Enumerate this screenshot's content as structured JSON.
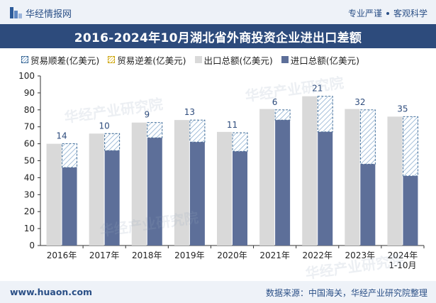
{
  "header": {
    "brand": "华经情报网",
    "tags": [
      "专业严谨",
      "客观科学"
    ]
  },
  "title": "2016-2024年10月湖北省外商投资企业进出口差额",
  "legend": [
    {
      "key": "surplus",
      "label": "贸易顺差(亿美元)"
    },
    {
      "key": "deficit",
      "label": "贸易逆差(亿美元)"
    },
    {
      "key": "export",
      "label": "出口总额(亿美元)"
    },
    {
      "key": "import",
      "label": "进口总额(亿美元)"
    }
  ],
  "footer": {
    "site": "www.huaon.com",
    "source": "数据来源：中国海关，华经产业研究院整理"
  },
  "watermark": "华经产业研究院",
  "colors": {
    "export": "#d9d9d9",
    "import": "#5d6f99",
    "surplus_stroke": "#2d5e8e",
    "surplus_hatch": "#7fa6cc",
    "label": "#2d4b7c",
    "title_bg": "#2d4b7c"
  },
  "chart_data": {
    "type": "bar",
    "categories": [
      "2016年",
      "2017年",
      "2018年",
      "2019年",
      "2020年",
      "2021年",
      "2022年",
      "2023年",
      "2024年\n1-10月"
    ],
    "series": [
      {
        "name": "出口总额(亿美元)",
        "values": [
          60,
          66,
          72.5,
          74,
          67,
          80.5,
          88,
          80.5,
          76
        ]
      },
      {
        "name": "进口总额(亿美元)",
        "values": [
          46,
          56,
          63.5,
          61,
          55.5,
          74,
          67,
          48,
          41
        ]
      },
      {
        "name": "贸易顺差(亿美元)",
        "values": [
          14,
          10,
          9,
          13,
          11,
          6,
          21,
          32,
          35
        ]
      },
      {
        "name": "贸易逆差(亿美元)",
        "values": [
          0,
          0,
          0,
          0,
          0,
          0,
          0,
          0,
          0
        ]
      }
    ],
    "data_labels": [
      "14",
      "10",
      "9",
      "13",
      "11",
      "6",
      "21",
      "32",
      "35"
    ],
    "ylim": [
      0,
      100
    ],
    "yticks": [
      0,
      10,
      20,
      30,
      40,
      50,
      60,
      70,
      80,
      90,
      100
    ],
    "grid": false,
    "legend_position": "top"
  }
}
